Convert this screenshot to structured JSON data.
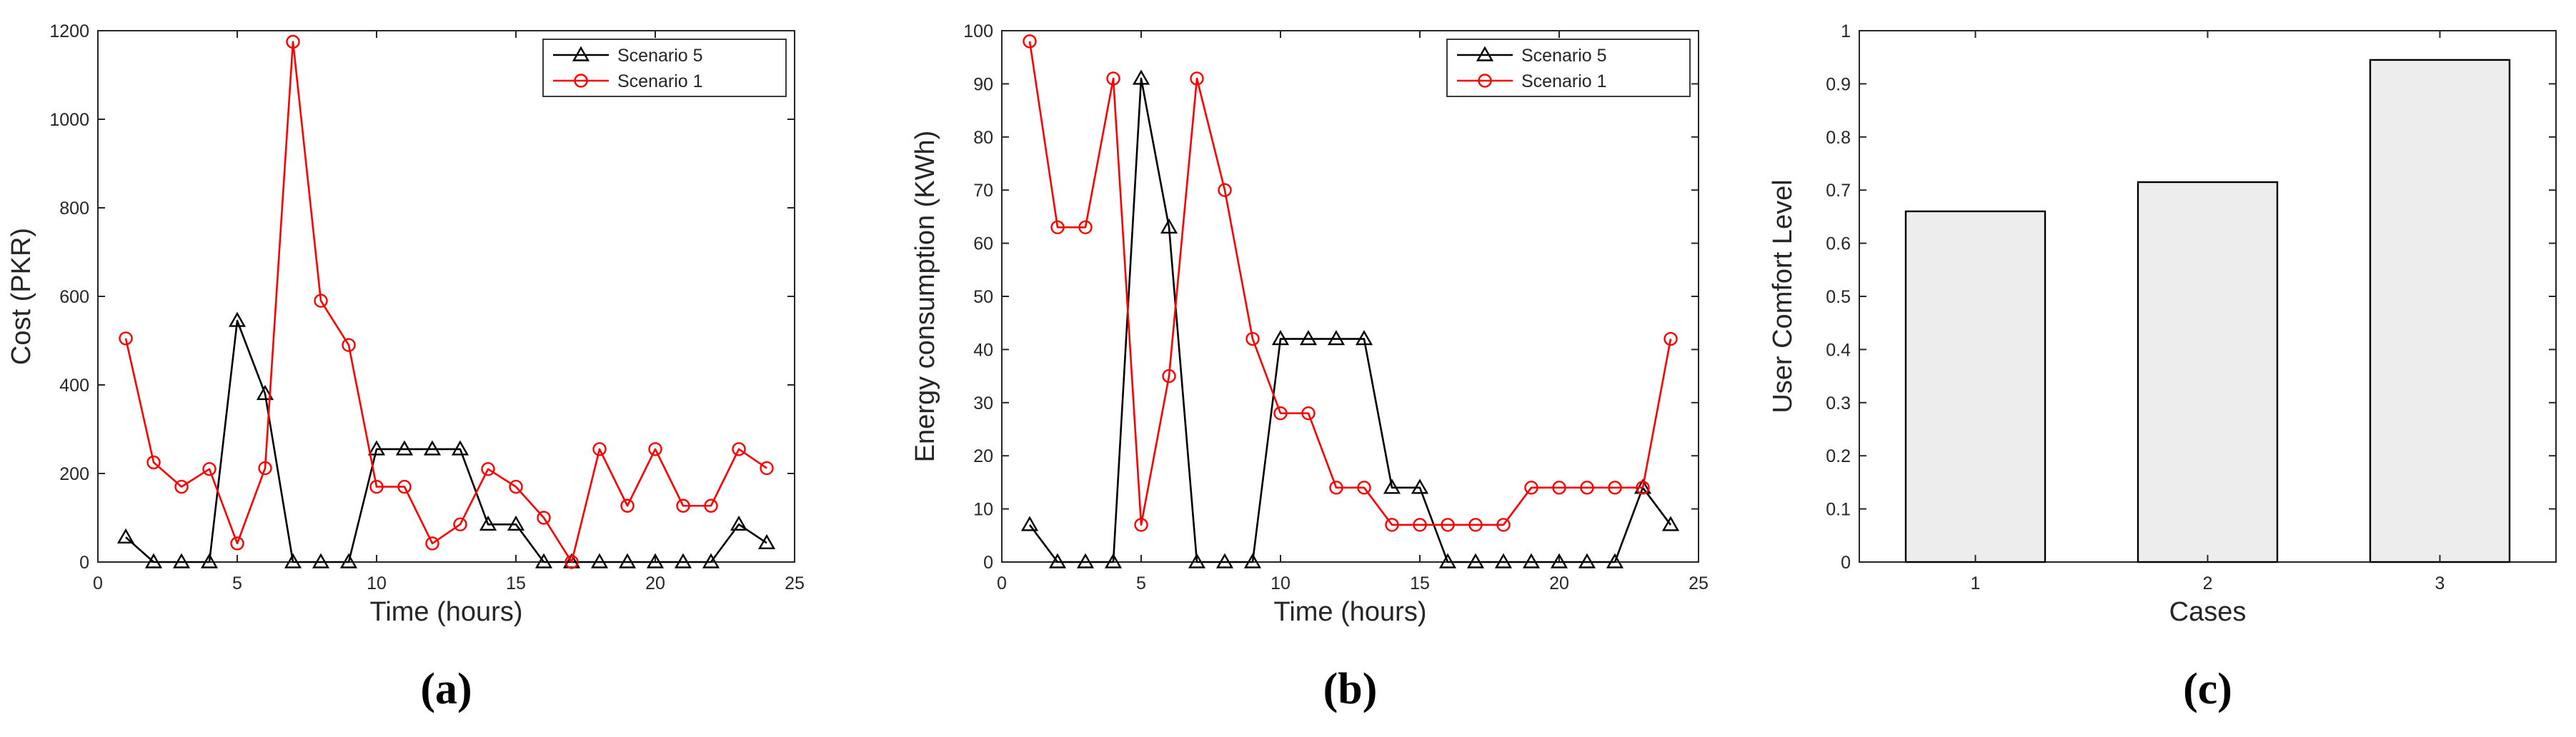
{
  "chart_data": [
    {
      "id": "a",
      "type": "line",
      "panel_label": "(a)",
      "xlabel": "Time (hours)",
      "ylabel": "Cost (PKR)",
      "xlim": [
        0,
        25
      ],
      "ylim": [
        0,
        1200
      ],
      "xticks": [
        0,
        5,
        10,
        15,
        20,
        25
      ],
      "yticks": [
        0,
        200,
        400,
        600,
        800,
        1000,
        1200
      ],
      "grid": false,
      "legend_position": "top-right",
      "x": [
        1,
        2,
        3,
        4,
        5,
        6,
        7,
        8,
        9,
        10,
        11,
        12,
        13,
        14,
        15,
        16,
        17,
        18,
        19,
        20,
        21,
        22,
        23,
        24
      ],
      "series": [
        {
          "name": "Scenario 5",
          "color": "#000000",
          "marker": "triangle",
          "values": [
            56,
            0,
            0,
            0,
            545,
            380,
            0,
            0,
            0,
            255,
            255,
            255,
            255,
            85,
            85,
            0,
            0,
            0,
            0,
            0,
            0,
            0,
            85,
            43
          ]
        },
        {
          "name": "Scenario 1",
          "color": "#ff0000",
          "marker": "circle",
          "values": [
            505,
            225,
            170,
            210,
            42,
            212,
            1175,
            590,
            490,
            170,
            170,
            42,
            85,
            210,
            170,
            100,
            0,
            255,
            127,
            255,
            127,
            127,
            255,
            212
          ]
        }
      ]
    },
    {
      "id": "b",
      "type": "line",
      "panel_label": "(b)",
      "xlabel": "Time (hours)",
      "ylabel": "Energy consumption (KWh)",
      "xlim": [
        0,
        25
      ],
      "ylim": [
        0,
        100
      ],
      "xticks": [
        0,
        5,
        10,
        15,
        20,
        25
      ],
      "yticks": [
        0,
        10,
        20,
        30,
        40,
        50,
        60,
        70,
        80,
        90,
        100
      ],
      "grid": false,
      "legend_position": "top-right",
      "x": [
        1,
        2,
        3,
        4,
        5,
        6,
        7,
        8,
        9,
        10,
        11,
        12,
        13,
        14,
        15,
        16,
        17,
        18,
        19,
        20,
        21,
        22,
        23,
        24
      ],
      "series": [
        {
          "name": "Scenario 5",
          "color": "#000000",
          "marker": "triangle",
          "values": [
            7,
            0,
            0,
            0,
            91,
            63,
            0,
            0,
            0,
            42,
            42,
            42,
            42,
            14,
            14,
            0,
            0,
            0,
            0,
            0,
            0,
            0,
            14,
            7
          ]
        },
        {
          "name": "Scenario 1",
          "color": "#ff0000",
          "marker": "circle",
          "values": [
            98,
            63,
            63,
            91,
            7,
            35,
            91,
            70,
            42,
            28,
            28,
            14,
            14,
            7,
            7,
            7,
            7,
            7,
            14,
            14,
            14,
            14,
            14,
            42
          ]
        }
      ]
    },
    {
      "id": "c",
      "type": "bar",
      "panel_label": "(c)",
      "xlabel": "Cases",
      "ylabel": "User Comfort Level",
      "ylim": [
        0,
        1
      ],
      "yticks": [
        0,
        0.1,
        0.2,
        0.3,
        0.4,
        0.5,
        0.6,
        0.7,
        0.8,
        0.9,
        1
      ],
      "grid": false,
      "bar_color": "#ededed",
      "categories": [
        "1",
        "2",
        "3"
      ],
      "values": [
        0.66,
        0.715,
        0.945
      ]
    }
  ]
}
